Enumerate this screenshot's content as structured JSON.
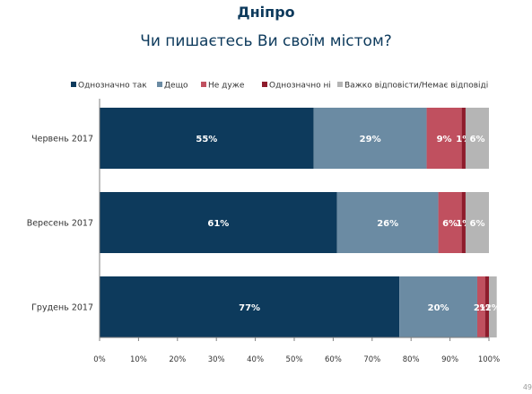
{
  "header": {
    "title": "Дніпро",
    "subtitle": "Чи пишаєтесь Ви своїм містом?"
  },
  "page_number": "49",
  "chart_data": {
    "type": "bar",
    "orientation": "horizontal",
    "stacked": true,
    "categories": [
      "Червень 2017",
      "Вересень 2017",
      "Грудень 2017"
    ],
    "series": [
      {
        "name": "Однозначно так",
        "color": "#0d3a5c",
        "values": [
          55,
          61,
          77
        ]
      },
      {
        "name": "Дещо",
        "color": "#6b8ba3",
        "values": [
          29,
          26,
          20
        ]
      },
      {
        "name": "Не дуже",
        "color": "#c0505f",
        "values": [
          9,
          6,
          2
        ]
      },
      {
        "name": "Однозначно ні",
        "color": "#8e1c2c",
        "values": [
          1,
          1,
          1
        ]
      },
      {
        "name": "Важко відповісти/Немає відповіді",
        "color": "#b5b5b5",
        "values": [
          6,
          6,
          2
        ]
      }
    ],
    "xlim": [
      0,
      100
    ],
    "x_ticks": [
      "0%",
      "10%",
      "20%",
      "30%",
      "40%",
      "50%",
      "60%",
      "70%",
      "80%",
      "90%",
      "100%"
    ],
    "value_suffix": "%",
    "legend_position": "top",
    "grid": false
  }
}
